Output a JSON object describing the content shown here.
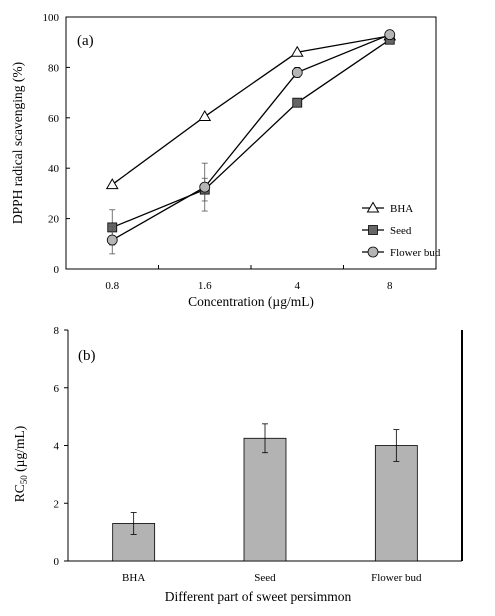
{
  "chart_data": [
    {
      "panel_label": "(a)",
      "type": "line",
      "categories": [
        "0.8",
        "1.6",
        "4",
        "8"
      ],
      "xlabel": "Concentration (µg/mL)",
      "ylabel": "DPPH radical  scavenging (%)",
      "ylim": [
        0,
        100
      ],
      "yticks": [
        0,
        20,
        40,
        60,
        80,
        100
      ],
      "grid": false,
      "legend_position": "bottom-right",
      "series": [
        {
          "name": "BHA",
          "values": [
            33.5,
            60.5,
            86,
            92.5
          ],
          "errors": [
            0,
            0,
            0,
            0
          ],
          "marker": "triangle",
          "color": "#ffffff"
        },
        {
          "name": "Seed",
          "values": [
            16.5,
            31.5,
            66,
            91
          ],
          "errors": [
            7,
            4.5,
            0,
            0
          ],
          "marker": "square",
          "color": "#666666"
        },
        {
          "name": "Flower bud",
          "values": [
            11.5,
            32.5,
            78,
            93
          ],
          "errors": [
            5.5,
            9.5,
            2,
            0
          ],
          "marker": "circle",
          "color": "#b5b5b5"
        }
      ]
    },
    {
      "panel_label": "(b)",
      "type": "bar",
      "categories": [
        "BHA",
        "Seed",
        "Flower bud"
      ],
      "values": [
        1.3,
        4.25,
        4.0
      ],
      "errors": [
        0.38,
        0.5,
        0.55
      ],
      "xlabel": "Different part of sweet persimmon",
      "ylabel_main": "RC",
      "ylabel_sub": "50",
      "ylabel_unit": " (µg/mL)",
      "ylim": [
        0,
        8
      ],
      "yticks": [
        0,
        2,
        4,
        6,
        8
      ],
      "grid": false,
      "bar_color": "#b3b3b3"
    }
  ]
}
